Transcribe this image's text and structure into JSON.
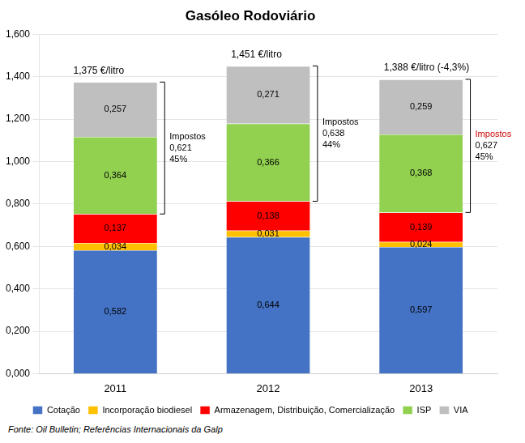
{
  "chart_data": {
    "type": "bar",
    "title": "Gasóleo Rodoviário",
    "categories": [
      "2011",
      "2012",
      "2013"
    ],
    "series": [
      {
        "name": "Cotação",
        "color": "#4472C4",
        "values": [
          0.582,
          0.644,
          0.597
        ],
        "value_labels": [
          "0,582",
          "0,644",
          "0,597"
        ]
      },
      {
        "name": "Incorporação biodiesel",
        "color": "#FFC000",
        "values": [
          0.034,
          0.031,
          0.024
        ],
        "value_labels": [
          "0,034",
          "0,031",
          "0,024"
        ]
      },
      {
        "name": "Armazenagem, Distribuição, Comercialização",
        "color": "#FF0000",
        "values": [
          0.137,
          0.138,
          0.139
        ],
        "value_labels": [
          "0,137",
          "0,138",
          "0,139"
        ]
      },
      {
        "name": "ISP",
        "color": "#92D050",
        "values": [
          0.364,
          0.366,
          0.368
        ],
        "value_labels": [
          "0,364",
          "0,366",
          "0,368"
        ]
      },
      {
        "name": "VIA",
        "color": "#BFBFBF",
        "values": [
          0.257,
          0.271,
          0.259
        ],
        "value_labels": [
          "0,257",
          "0,271",
          "0,259"
        ]
      }
    ],
    "stacked": true,
    "data_labels": true,
    "grid": true,
    "legend": "bottom",
    "ylim": [
      0,
      1.6
    ],
    "yticks": [
      {
        "value": 0.0,
        "label": "0,000"
      },
      {
        "value": 0.2,
        "label": "0,200"
      },
      {
        "value": 0.4,
        "label": "0,400"
      },
      {
        "value": 0.6,
        "label": "0,600"
      },
      {
        "value": 0.8,
        "label": "0,800"
      },
      {
        "value": 1.0,
        "label": "1,000"
      },
      {
        "value": 1.2,
        "label": "1,200"
      },
      {
        "value": 1.4,
        "label": "1,400"
      },
      {
        "value": 1.6,
        "label": "1,600"
      }
    ],
    "annotations": [
      {
        "type": "total",
        "category": "2011",
        "y": 1.375,
        "text": "1,375 €/litro"
      },
      {
        "type": "total",
        "category": "2012",
        "y": 1.451,
        "text": "1,451 €/litro"
      },
      {
        "type": "total",
        "category": "2013",
        "y": 1.388,
        "text": "1,388 €/litro (-4,3%)"
      },
      {
        "type": "bracket",
        "category": "2011",
        "y_start": 0.753,
        "y_end": 1.375,
        "lines": [
          {
            "text": "Impostos"
          },
          {
            "text": "0,621"
          },
          {
            "text": "45%"
          }
        ]
      },
      {
        "type": "bracket",
        "category": "2012",
        "y_start": 0.813,
        "y_end": 1.451,
        "lines": [
          {
            "text": "Impostos"
          },
          {
            "text": "0,638"
          },
          {
            "text": "44%"
          }
        ]
      },
      {
        "type": "bracket",
        "category": "2013",
        "y_start": 0.76,
        "y_end": 1.388,
        "lines": [
          {
            "text": "Impostos",
            "color": "#CC0000"
          },
          {
            "text": "0,627"
          },
          {
            "text": "45%"
          }
        ]
      },
      {
        "type": "note",
        "text": "Fonte: Oil Bulletin; Referências Internacionais da Galp"
      }
    ]
  }
}
